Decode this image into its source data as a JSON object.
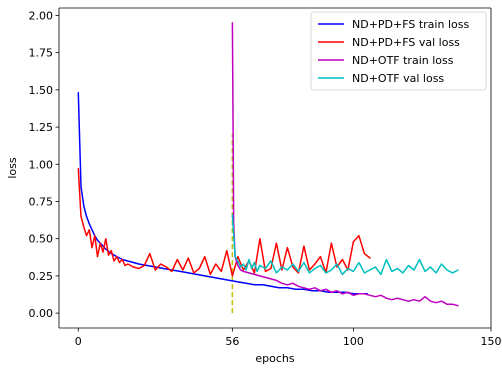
{
  "chart_data": {
    "type": "line",
    "title": "",
    "xlabel": "epochs",
    "ylabel": "loss",
    "xlim": [
      -7,
      150
    ],
    "ylim": [
      -0.1,
      2.05
    ],
    "xticks": [
      0,
      56,
      100,
      150
    ],
    "xtick_labels": [
      "0",
      "56",
      "100",
      "150"
    ],
    "yticks": [
      0.0,
      0.25,
      0.5,
      0.75,
      1.0,
      1.25,
      1.5,
      1.75,
      2.0
    ],
    "ytick_labels": [
      "0.00",
      "0.25",
      "0.50",
      "0.75",
      "1.00",
      "1.25",
      "1.50",
      "1.75",
      "2.00"
    ],
    "grid": false,
    "legend_position": "top-right",
    "vline": {
      "x": 56,
      "y_range": [
        0.0,
        1.2
      ],
      "color": "#bfbf00",
      "style": "dashed"
    },
    "series": [
      {
        "name": "ND+PD+FS train loss",
        "color": "#0000ff",
        "x": [
          0,
          1,
          2,
          3,
          4,
          5,
          6,
          7,
          8,
          9,
          10,
          12,
          14,
          16,
          18,
          20,
          22,
          25,
          28,
          31,
          34,
          37,
          40,
          43,
          46,
          49,
          52,
          55,
          58,
          61,
          64,
          67,
          70,
          73,
          76,
          79,
          82,
          85,
          88,
          91,
          94,
          97,
          100,
          103,
          105
        ],
        "y": [
          1.48,
          0.85,
          0.72,
          0.65,
          0.6,
          0.56,
          0.52,
          0.49,
          0.47,
          0.45,
          0.43,
          0.4,
          0.38,
          0.36,
          0.35,
          0.34,
          0.33,
          0.32,
          0.31,
          0.3,
          0.29,
          0.28,
          0.27,
          0.26,
          0.25,
          0.24,
          0.23,
          0.22,
          0.21,
          0.2,
          0.19,
          0.19,
          0.18,
          0.17,
          0.17,
          0.16,
          0.16,
          0.15,
          0.15,
          0.14,
          0.14,
          0.14,
          0.13,
          0.13,
          0.13
        ]
      },
      {
        "name": "ND+PD+FS val loss",
        "color": "#ff0000",
        "x": [
          0,
          1,
          2,
          3,
          4,
          5,
          6,
          7,
          8,
          9,
          10,
          11,
          12,
          13,
          14,
          15,
          16,
          17,
          18,
          20,
          22,
          24,
          26,
          28,
          30,
          32,
          34,
          36,
          38,
          40,
          42,
          44,
          46,
          48,
          50,
          52,
          54,
          56,
          58,
          60,
          62,
          64,
          66,
          68,
          70,
          72,
          74,
          76,
          78,
          80,
          82,
          84,
          86,
          88,
          90,
          92,
          94,
          96,
          98,
          100,
          102,
          104,
          106
        ],
        "y": [
          0.97,
          0.65,
          0.58,
          0.52,
          0.56,
          0.44,
          0.52,
          0.38,
          0.47,
          0.41,
          0.5,
          0.39,
          0.42,
          0.35,
          0.38,
          0.34,
          0.36,
          0.32,
          0.33,
          0.31,
          0.3,
          0.32,
          0.4,
          0.29,
          0.33,
          0.31,
          0.28,
          0.36,
          0.29,
          0.37,
          0.27,
          0.3,
          0.38,
          0.26,
          0.33,
          0.28,
          0.42,
          0.25,
          0.38,
          0.29,
          0.35,
          0.27,
          0.5,
          0.28,
          0.3,
          0.47,
          0.29,
          0.44,
          0.31,
          0.27,
          0.45,
          0.29,
          0.33,
          0.38,
          0.27,
          0.47,
          0.31,
          0.36,
          0.29,
          0.48,
          0.52,
          0.4,
          0.37
        ]
      },
      {
        "name": "ND+OTF train loss",
        "color": "#bf00bf",
        "x": [
          56,
          56.5,
          57,
          58,
          59,
          60,
          62,
          64,
          66,
          68,
          70,
          72,
          74,
          76,
          78,
          80,
          82,
          84,
          86,
          88,
          90,
          92,
          94,
          96,
          98,
          100,
          102,
          104,
          106,
          108,
          110,
          112,
          114,
          116,
          118,
          120,
          122,
          124,
          126,
          128,
          130,
          132,
          134,
          136,
          138
        ],
        "y": [
          1.95,
          0.6,
          0.38,
          0.32,
          0.29,
          0.28,
          0.27,
          0.26,
          0.25,
          0.24,
          0.23,
          0.22,
          0.2,
          0.19,
          0.2,
          0.18,
          0.17,
          0.16,
          0.17,
          0.15,
          0.16,
          0.14,
          0.15,
          0.13,
          0.14,
          0.12,
          0.13,
          0.13,
          0.12,
          0.11,
          0.12,
          0.1,
          0.09,
          0.1,
          0.09,
          0.08,
          0.09,
          0.08,
          0.11,
          0.08,
          0.07,
          0.08,
          0.06,
          0.06,
          0.05
        ]
      },
      {
        "name": "ND+OTF val loss",
        "color": "#00bfbf",
        "x": [
          56,
          57,
          58,
          59,
          60,
          61,
          62,
          63,
          64,
          65,
          66,
          68,
          70,
          72,
          74,
          76,
          78,
          80,
          82,
          84,
          86,
          88,
          90,
          92,
          94,
          96,
          98,
          100,
          102,
          104,
          106,
          108,
          110,
          112,
          114,
          116,
          118,
          120,
          122,
          124,
          126,
          128,
          130,
          132,
          134,
          136,
          138
        ],
        "y": [
          0.66,
          0.38,
          0.35,
          0.31,
          0.33,
          0.29,
          0.36,
          0.3,
          0.34,
          0.28,
          0.32,
          0.3,
          0.35,
          0.27,
          0.31,
          0.29,
          0.33,
          0.28,
          0.34,
          0.27,
          0.3,
          0.32,
          0.27,
          0.29,
          0.33,
          0.26,
          0.3,
          0.28,
          0.34,
          0.27,
          0.29,
          0.31,
          0.26,
          0.36,
          0.28,
          0.3,
          0.27,
          0.32,
          0.29,
          0.36,
          0.28,
          0.31,
          0.27,
          0.33,
          0.29,
          0.27,
          0.29
        ]
      }
    ]
  }
}
